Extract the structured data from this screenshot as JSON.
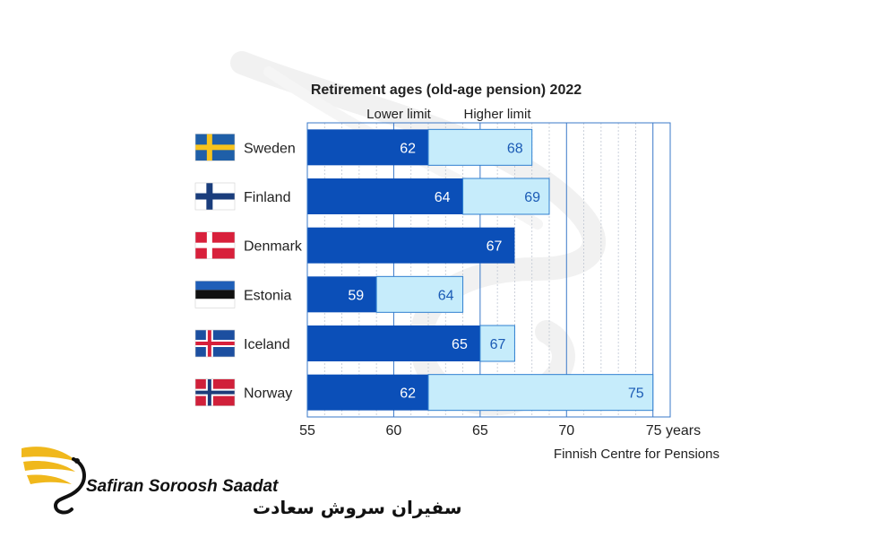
{
  "colors": {
    "lower": "#0b4fb8",
    "higher": "#c6ecfb",
    "higher_border": "#2f7fd0",
    "frame": "#3a78c8",
    "grid": "#bfc6d2",
    "logo_gold": "#f0b81c"
  },
  "chart_data": {
    "type": "bar",
    "orientation": "horizontal",
    "title": "Retirement ages (old-age pension) 2022",
    "legend": {
      "lower": "Lower limit",
      "higher": "Higher limit",
      "placement": "top"
    },
    "x_ticks": [
      "55",
      "60",
      "65",
      "70",
      "75 years"
    ],
    "xlim": [
      55,
      76
    ],
    "grid": true,
    "categories": [
      "Sweden",
      "Finland",
      "Denmark",
      "Estonia",
      "Iceland",
      "Norway"
    ],
    "flags": [
      "sweden",
      "finland",
      "denmark",
      "estonia",
      "iceland",
      "norway"
    ],
    "series": [
      {
        "name": "Lower limit",
        "values": [
          62,
          64,
          67,
          59,
          65,
          62
        ]
      },
      {
        "name": "Higher limit",
        "values": [
          68,
          69,
          null,
          64,
          67,
          75
        ]
      }
    ],
    "source": "Finnish Centre for Pensions"
  },
  "logo": {
    "name_en": "Safiran Soroosh Saadat",
    "name_fa": "سفیران سروش سعادت"
  }
}
